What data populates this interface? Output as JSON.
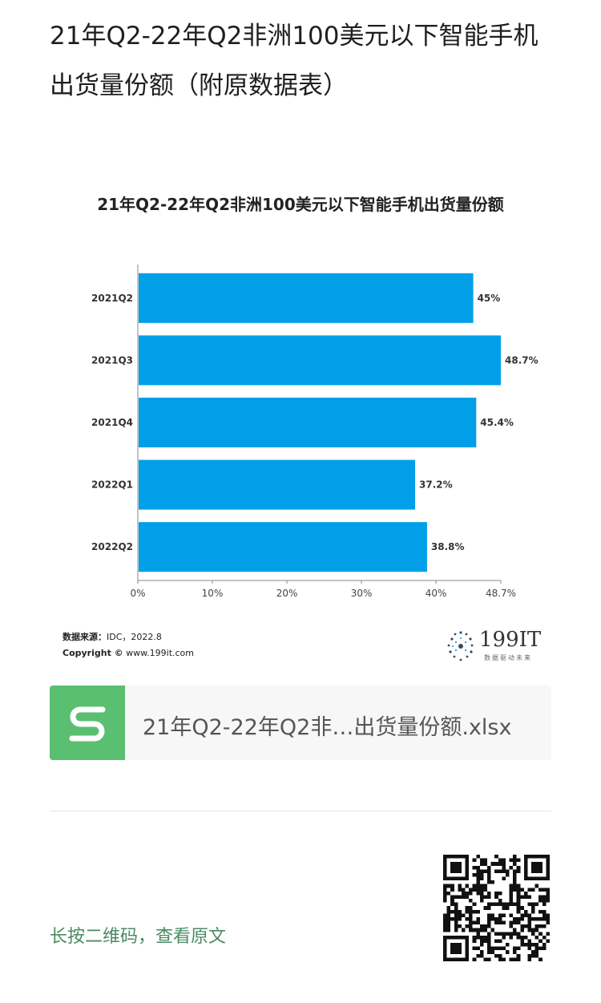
{
  "page": {
    "title": "21年Q2-22年Q2非洲100美元以下智能手机出货量份额（附原数据表）"
  },
  "chart_data": {
    "type": "bar",
    "orientation": "horizontal",
    "title": "21年Q2-22年Q2非洲100美元以下智能手机出货量份额",
    "categories": [
      "2021Q2",
      "2021Q3",
      "2021Q4",
      "2022Q1",
      "2022Q2"
    ],
    "values": [
      45,
      48.7,
      45.4,
      37.2,
      38.8
    ],
    "data_labels": [
      "45%",
      "48.7%",
      "45.4%",
      "37.2%",
      "38.8%"
    ],
    "xlim": [
      0,
      48.7
    ],
    "x_ticks": [
      "0%",
      "10%",
      "20%",
      "30%",
      "40%",
      "48.7%"
    ],
    "x_tick_values": [
      0,
      10,
      20,
      30,
      40,
      48.7
    ],
    "xlabel": "",
    "ylabel": "",
    "grid": false,
    "bar_color": "#009fe8"
  },
  "source": {
    "label": "数据来源：",
    "text": "IDC，2022.8",
    "copyright_label": "Copyright ©",
    "copyright_url": "www.199it.com"
  },
  "brand": {
    "name": "199IT",
    "slogan": "数据驱动未来"
  },
  "attachment": {
    "icon": "spreadsheet-s-icon",
    "filename": "21年Q2-22年Q2非…出货量份额.xlsx"
  },
  "qr": {
    "hint": "长按二维码，查看原文"
  }
}
